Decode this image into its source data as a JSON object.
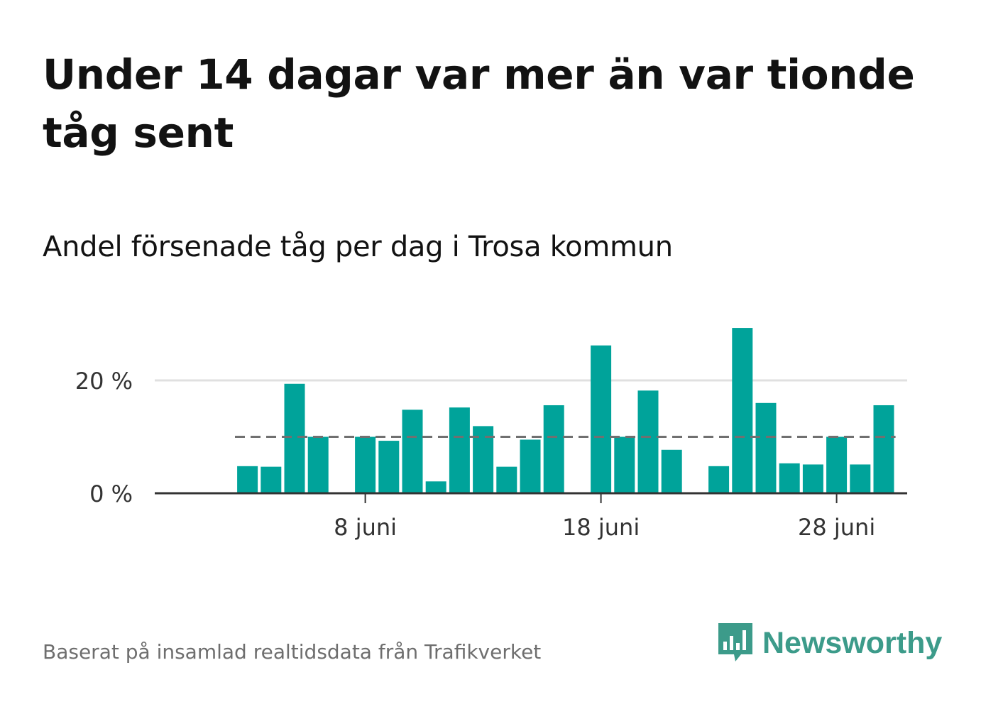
{
  "title": "Under 14 dagar var mer än var tionde tåg sent",
  "subtitle": "Andel försenade tåg per dag i Trosa kommun",
  "source": "Baserat på insamlad realtidsdata från Trafikverket",
  "brand": {
    "name": "Newsworthy",
    "color": "#3c9b8a",
    "icon": "newsworthy-logo-icon"
  },
  "colors": {
    "bar": "#00a39a",
    "reference": "#707070",
    "grid": "#e0e0e0",
    "axis": "#333333"
  },
  "chart_data": {
    "type": "bar",
    "x_unit": "day of June",
    "x_range": [
      0,
      31
    ],
    "days": [
      1,
      2,
      3,
      4,
      5,
      6,
      7,
      8,
      9,
      10,
      11,
      12,
      13,
      14,
      15,
      16,
      17,
      18,
      19,
      20,
      21,
      22,
      23,
      24,
      25,
      26,
      27,
      28,
      29,
      30
    ],
    "values": [
      null,
      null,
      4.8,
      4.7,
      19.4,
      10,
      null,
      10,
      9.3,
      14.8,
      2.1,
      15.2,
      11.9,
      4.7,
      9.5,
      15.6,
      null,
      26.2,
      10,
      18.2,
      7.7,
      null,
      4.8,
      29.3,
      16,
      5.3,
      5.1,
      10,
      5.1,
      15.6
    ],
    "reference_line": {
      "value": 10
    },
    "y_ticks": [
      {
        "value": 0,
        "label": "0 %"
      },
      {
        "value": 20,
        "label": "20 %"
      }
    ],
    "x_ticks": [
      {
        "value": 8,
        "label": "8 juni"
      },
      {
        "value": 18,
        "label": "18 juni"
      },
      {
        "value": 28,
        "label": "28 juni"
      }
    ],
    "ylim": [
      0,
      30
    ],
    "grid": true,
    "legend": "none"
  }
}
